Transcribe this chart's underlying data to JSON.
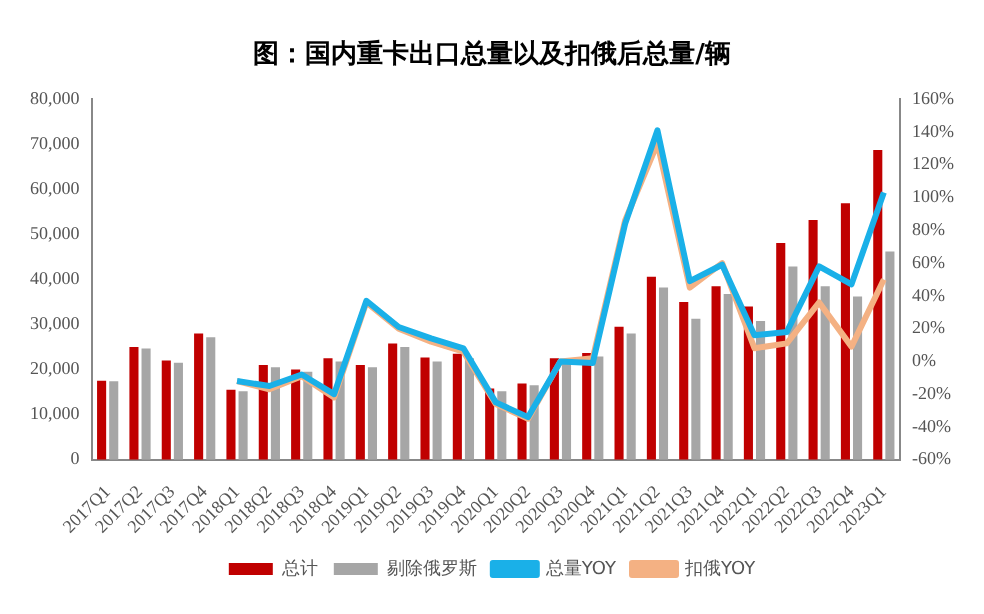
{
  "chart_data": {
    "type": "bar",
    "title": "图：国内重卡出口总量以及扣俄后总量/辆",
    "categories": [
      "2017Q1",
      "2017Q2",
      "2017Q3",
      "2017Q4",
      "2018Q1",
      "2018Q2",
      "2018Q3",
      "2018Q4",
      "2019Q1",
      "2019Q2",
      "2019Q3",
      "2019Q4",
      "2020Q1",
      "2020Q2",
      "2020Q3",
      "2020Q4",
      "2021Q1",
      "2021Q2",
      "2021Q3",
      "2021Q4",
      "2022Q1",
      "2022Q2",
      "2022Q3",
      "2022Q4",
      "2023Q1"
    ],
    "series": [
      {
        "name": "总计",
        "color": "#c00000",
        "values": [
          17500,
          25000,
          22000,
          28000,
          15500,
          21000,
          20000,
          22500,
          21000,
          25800,
          22700,
          23500,
          15800,
          16900,
          22500,
          23700,
          29500,
          40600,
          35000,
          38500,
          34000,
          48100,
          53200,
          56900,
          68700
        ]
      },
      {
        "name": "剔除俄罗斯",
        "color": "#a6a6a6",
        "values": [
          17400,
          24700,
          21500,
          27200,
          15200,
          20500,
          19500,
          21800,
          20500,
          25000,
          21800,
          22500,
          15200,
          16500,
          22000,
          22900,
          28000,
          38200,
          31300,
          36800,
          30800,
          42900,
          38500,
          36200,
          46200
        ]
      },
      {
        "name": "总量YOY",
        "type": "line",
        "axis": "y2",
        "color": "#1ab0e8",
        "values": [
          null,
          null,
          null,
          null,
          -12,
          -15,
          -8,
          -20,
          37,
          21,
          14,
          8,
          -25,
          -34,
          0,
          -1,
          84,
          141,
          49,
          59,
          16,
          18,
          58,
          47,
          103
        ]
      },
      {
        "name": "扣俄YOY",
        "type": "line",
        "axis": "y2",
        "color": "#f4b183",
        "values": [
          null,
          null,
          null,
          null,
          -12,
          -17,
          -9,
          -22,
          36,
          20,
          12,
          6,
          -26,
          -35,
          0,
          2,
          86,
          133,
          45,
          60,
          8,
          11,
          36,
          9,
          50
        ]
      }
    ],
    "ylim": [
      0,
      80000
    ],
    "yticks": [
      {
        "value": 0,
        "label": "0"
      },
      {
        "value": 10000,
        "label": "10,000"
      },
      {
        "value": 20000,
        "label": "20,000"
      },
      {
        "value": 30000,
        "label": "30,000"
      },
      {
        "value": 40000,
        "label": "40,000"
      },
      {
        "value": 50000,
        "label": "50,000"
      },
      {
        "value": 60000,
        "label": "60,000"
      },
      {
        "value": 70000,
        "label": "70,000"
      },
      {
        "value": 80000,
        "label": "80,000"
      }
    ],
    "y2lim": [
      -60,
      160
    ],
    "y2ticks": [
      {
        "value": -60,
        "label": "-60%"
      },
      {
        "value": -40,
        "label": "-40%"
      },
      {
        "value": -20,
        "label": "-20%"
      },
      {
        "value": 0,
        "label": "0%"
      },
      {
        "value": 20,
        "label": "20%"
      },
      {
        "value": 40,
        "label": "40%"
      },
      {
        "value": 60,
        "label": "60%"
      },
      {
        "value": 80,
        "label": "80%"
      },
      {
        "value": 100,
        "label": "100%"
      },
      {
        "value": 120,
        "label": "120%"
      },
      {
        "value": 140,
        "label": "140%"
      },
      {
        "value": 160,
        "label": "160%"
      }
    ],
    "grid": false,
    "legend": "bottom",
    "marker": "none"
  }
}
